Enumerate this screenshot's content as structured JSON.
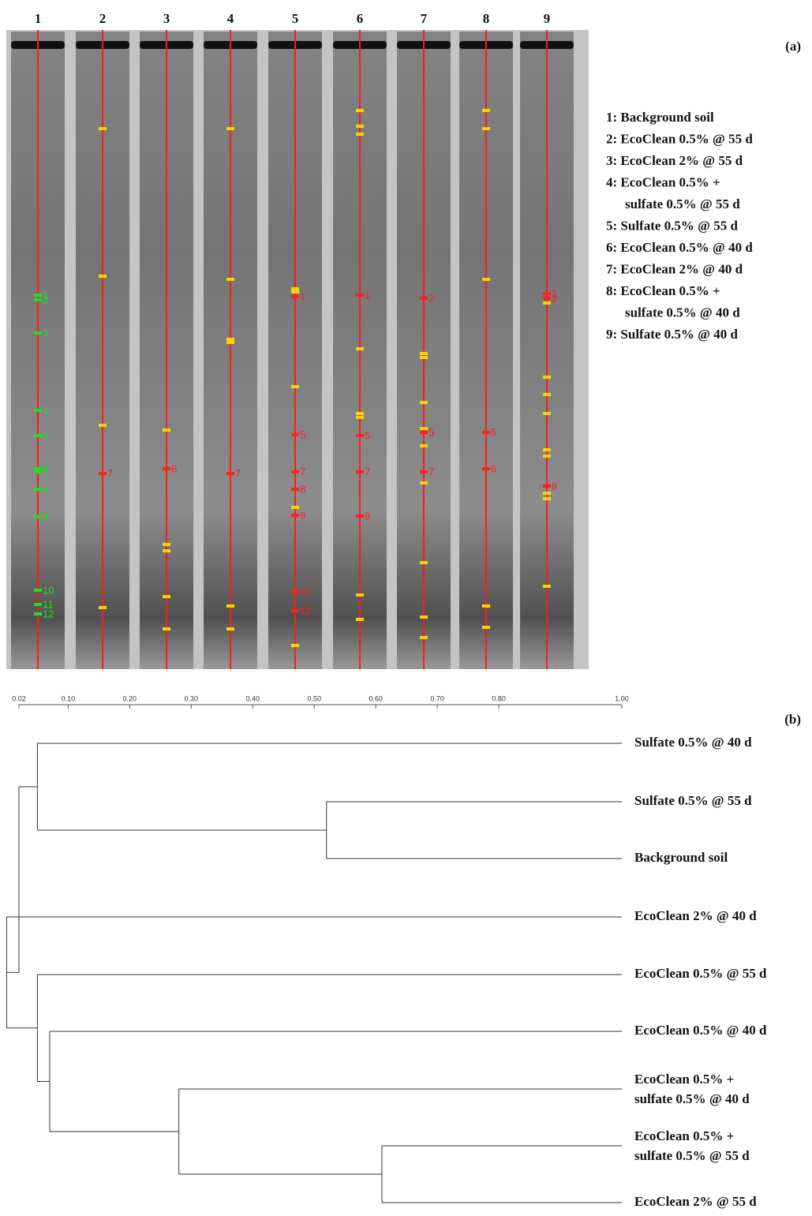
{
  "panel_a": {
    "label": "(a)",
    "lane_numbers": [
      "1",
      "2",
      "3",
      "4",
      "5",
      "6",
      "7",
      "8",
      "9"
    ],
    "legend": [
      [
        "1: Background  soil"
      ],
      [
        "2: EcoClean 0.5% @ 55 d"
      ],
      [
        "3: EcoClean 2% @ 55 d"
      ],
      [
        "4: EcoClean 0.5% +",
        "sulfate 0.5% @ 55 d"
      ],
      [
        "5: Sulfate 0.5% @ 55 d"
      ],
      [
        "6: EcoClean 0.5% @ 40 d"
      ],
      [
        "7: EcoClean 2% @ 40 d"
      ],
      [
        "8: EcoClean 0.5% +",
        "sulfate 0.5% @ 40 d"
      ],
      [
        "9: Sulfate 0.5% @ 40 d"
      ]
    ],
    "band_labels": [
      [
        "1",
        "2",
        "3",
        "4",
        "5",
        "6",
        "7",
        "8",
        "9",
        "10",
        "11",
        "12"
      ],
      [
        "7"
      ],
      [
        "6"
      ],
      [
        "7"
      ],
      [
        "1",
        "5",
        "7",
        "8",
        "9",
        "10",
        "12"
      ],
      [
        "1",
        "5",
        "7",
        "9"
      ],
      [
        "2",
        "5",
        "7"
      ],
      [
        "5",
        "6"
      ],
      [
        "1",
        "2",
        "8"
      ]
    ]
  },
  "panel_b": {
    "label": "(b)",
    "xlim": [
      0.02,
      1.0
    ],
    "xticks": [
      {
        "value": 0.02,
        "label": "0.02"
      },
      {
        "value": 0.1,
        "label": "0.10"
      },
      {
        "value": 0.2,
        "label": "0.20"
      },
      {
        "value": 0.3,
        "label": "0.30"
      },
      {
        "value": 0.4,
        "label": "0.40"
      },
      {
        "value": 0.5,
        "label": "0.50"
      },
      {
        "value": 0.6,
        "label": "0.60"
      },
      {
        "value": 0.7,
        "label": "0.70"
      },
      {
        "value": 0.8,
        "label": "0.80"
      },
      {
        "value": 1.0,
        "label": "1.00"
      }
    ],
    "leaves": [
      [
        "Sulfate 0.5% @ 40 d"
      ],
      [
        "Sulfate 0.5% @ 55 d"
      ],
      [
        "Background soil"
      ],
      [
        "EcoClean 2% @ 40 d"
      ],
      [
        "EcoClean 0.5% @ 55 d"
      ],
      [
        "EcoClean 0.5% @ 40 d"
      ],
      [
        "EcoClean 0.5% +",
        "sulfate 0.5% @ 40 d"
      ],
      [
        "EcoClean 0.5% +",
        "sulfate 0.5% @ 55 d"
      ],
      [
        "EcoClean 2% @ 55 d"
      ]
    ],
    "node_heights": [
      0.52,
      0.05,
      0.61,
      0.28,
      0.07,
      0.05,
      0.0,
      0.02
    ]
  }
}
